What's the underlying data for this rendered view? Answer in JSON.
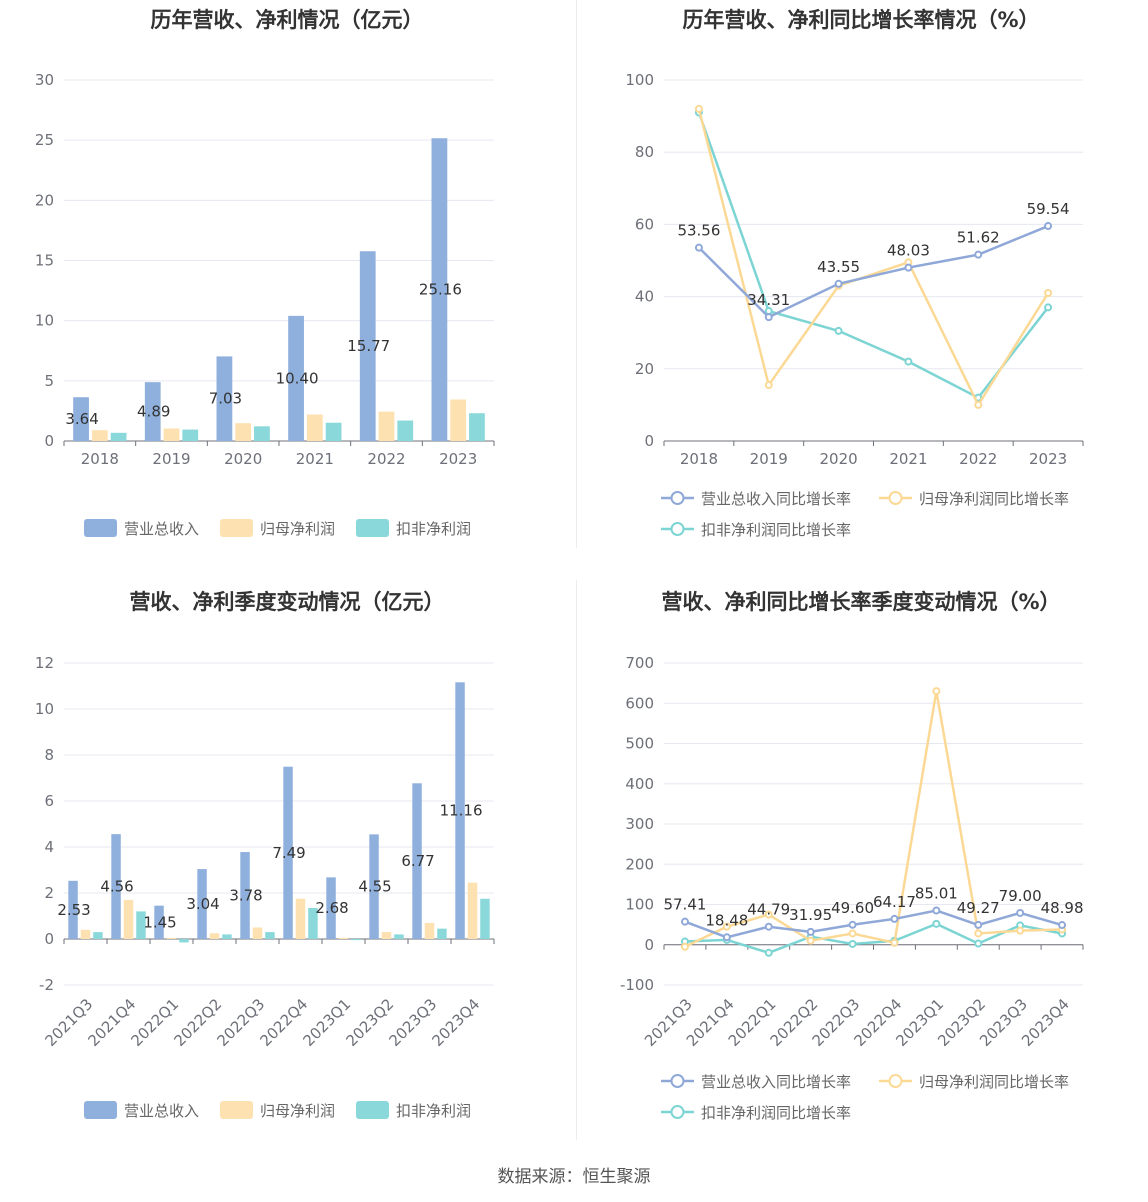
{
  "source": "数据来源：恒生聚源",
  "colors": {
    "revenue": "#8fb0dd",
    "net": "#fde1b0",
    "deducted": "#8ad8da",
    "revenue_line": "#8fa8d8",
    "net_line": "#fbd995",
    "deducted_line": "#7cd4d3"
  },
  "legend": {
    "revenue": "营业总收入",
    "net": "归母净利润",
    "deducted": "扣非净利润",
    "revenue_growth": "营业总收入同比增长率",
    "net_growth": "归母净利润同比增长率",
    "deducted_growth": "扣非净利润同比增长率"
  },
  "chart_data": [
    {
      "id": "annual-bar",
      "type": "bar",
      "title": "历年营收、净利情况（亿元）",
      "categories": [
        "2018",
        "2019",
        "2020",
        "2021",
        "2022",
        "2023"
      ],
      "series": [
        {
          "name": "营业总收入",
          "values": [
            3.64,
            4.89,
            7.03,
            10.4,
            15.77,
            25.16
          ]
        },
        {
          "name": "归母净利润",
          "values": [
            0.9,
            1.04,
            1.48,
            2.2,
            2.44,
            3.45
          ]
        },
        {
          "name": "扣非净利润",
          "values": [
            0.68,
            0.95,
            1.22,
            1.52,
            1.7,
            2.31
          ]
        }
      ],
      "labels": [
        "3.64",
        "4.89",
        "7.03",
        "10.40",
        "15.77",
        "25.16"
      ],
      "ylim": [
        0,
        30
      ],
      "yticks": [
        "0",
        "5",
        "10",
        "15",
        "20",
        "25",
        "30"
      ]
    },
    {
      "id": "annual-line",
      "type": "line",
      "title": "历年营收、净利同比增长率情况（%）",
      "categories": [
        "2018",
        "2019",
        "2020",
        "2021",
        "2022",
        "2023"
      ],
      "series": [
        {
          "name": "营业总收入同比增长率",
          "values": [
            53.56,
            34.31,
            43.55,
            48.03,
            51.62,
            59.54
          ]
        },
        {
          "name": "归母净利润同比增长率",
          "values": [
            92.0,
            15.5,
            43.0,
            49.5,
            10.0,
            41.0
          ]
        },
        {
          "name": "扣非净利润同比增长率",
          "values": [
            91.0,
            36.0,
            30.5,
            22.0,
            12.0,
            37.0
          ]
        }
      ],
      "labels": [
        "53.56",
        "34.31",
        "43.55",
        "48.03",
        "51.62",
        "59.54"
      ],
      "ylim": [
        0,
        100
      ],
      "yticks": [
        "0",
        "20",
        "40",
        "60",
        "80",
        "100"
      ]
    },
    {
      "id": "quarter-bar",
      "type": "bar",
      "title": "营收、净利季度变动情况（亿元）",
      "categories": [
        "2021Q3",
        "2021Q4",
        "2022Q1",
        "2022Q2",
        "2022Q3",
        "2022Q4",
        "2023Q1",
        "2023Q2",
        "2023Q3",
        "2023Q4"
      ],
      "series": [
        {
          "name": "营业总收入",
          "values": [
            2.53,
            4.56,
            1.45,
            3.04,
            3.78,
            7.49,
            2.68,
            4.55,
            6.77,
            11.16
          ]
        },
        {
          "name": "归母净利润",
          "values": [
            0.4,
            1.7,
            0.05,
            0.25,
            0.5,
            1.75,
            0.05,
            0.3,
            0.7,
            2.45
          ]
        },
        {
          "name": "扣非净利润",
          "values": [
            0.3,
            1.2,
            -0.15,
            0.2,
            0.3,
            1.35,
            -0.05,
            0.2,
            0.45,
            1.75
          ]
        }
      ],
      "labels": [
        "2.53",
        "4.56",
        "1.45",
        "3.04",
        "3.78",
        "7.49",
        "2.68",
        "4.55",
        "6.77",
        "11.16"
      ],
      "ylim": [
        -2,
        12
      ],
      "yticks": [
        "-2",
        "0",
        "2",
        "4",
        "6",
        "8",
        "10",
        "12"
      ]
    },
    {
      "id": "quarter-line",
      "type": "line",
      "title": "营收、净利同比增长率季度变动情况（%）",
      "categories": [
        "2021Q3",
        "2021Q4",
        "2022Q1",
        "2022Q2",
        "2022Q3",
        "2022Q4",
        "2023Q1",
        "2023Q2",
        "2023Q3",
        "2023Q4"
      ],
      "series": [
        {
          "name": "营业总收入同比增长率",
          "values": [
            57.41,
            18.48,
            44.79,
            31.95,
            49.6,
            64.17,
            85.01,
            49.27,
            79.0,
            48.98
          ]
        },
        {
          "name": "归母净利润同比增长率",
          "values": [
            -5,
            45,
            75,
            10,
            28,
            5,
            630,
            28,
            35,
            38
          ]
        },
        {
          "name": "扣非净利润同比增长率",
          "values": [
            8,
            12,
            -20,
            20,
            2,
            10,
            52,
            3,
            48,
            28
          ]
        }
      ],
      "labels": [
        "57.41",
        "18.48",
        "44.79",
        "31.95",
        "49.60",
        "64.17",
        "85.01",
        "49.27",
        "79.00",
        "48.98"
      ],
      "ylim": [
        -100,
        700
      ],
      "yticks": [
        "-100",
        "0",
        "100",
        "200",
        "300",
        "400",
        "500",
        "600",
        "700"
      ]
    }
  ]
}
